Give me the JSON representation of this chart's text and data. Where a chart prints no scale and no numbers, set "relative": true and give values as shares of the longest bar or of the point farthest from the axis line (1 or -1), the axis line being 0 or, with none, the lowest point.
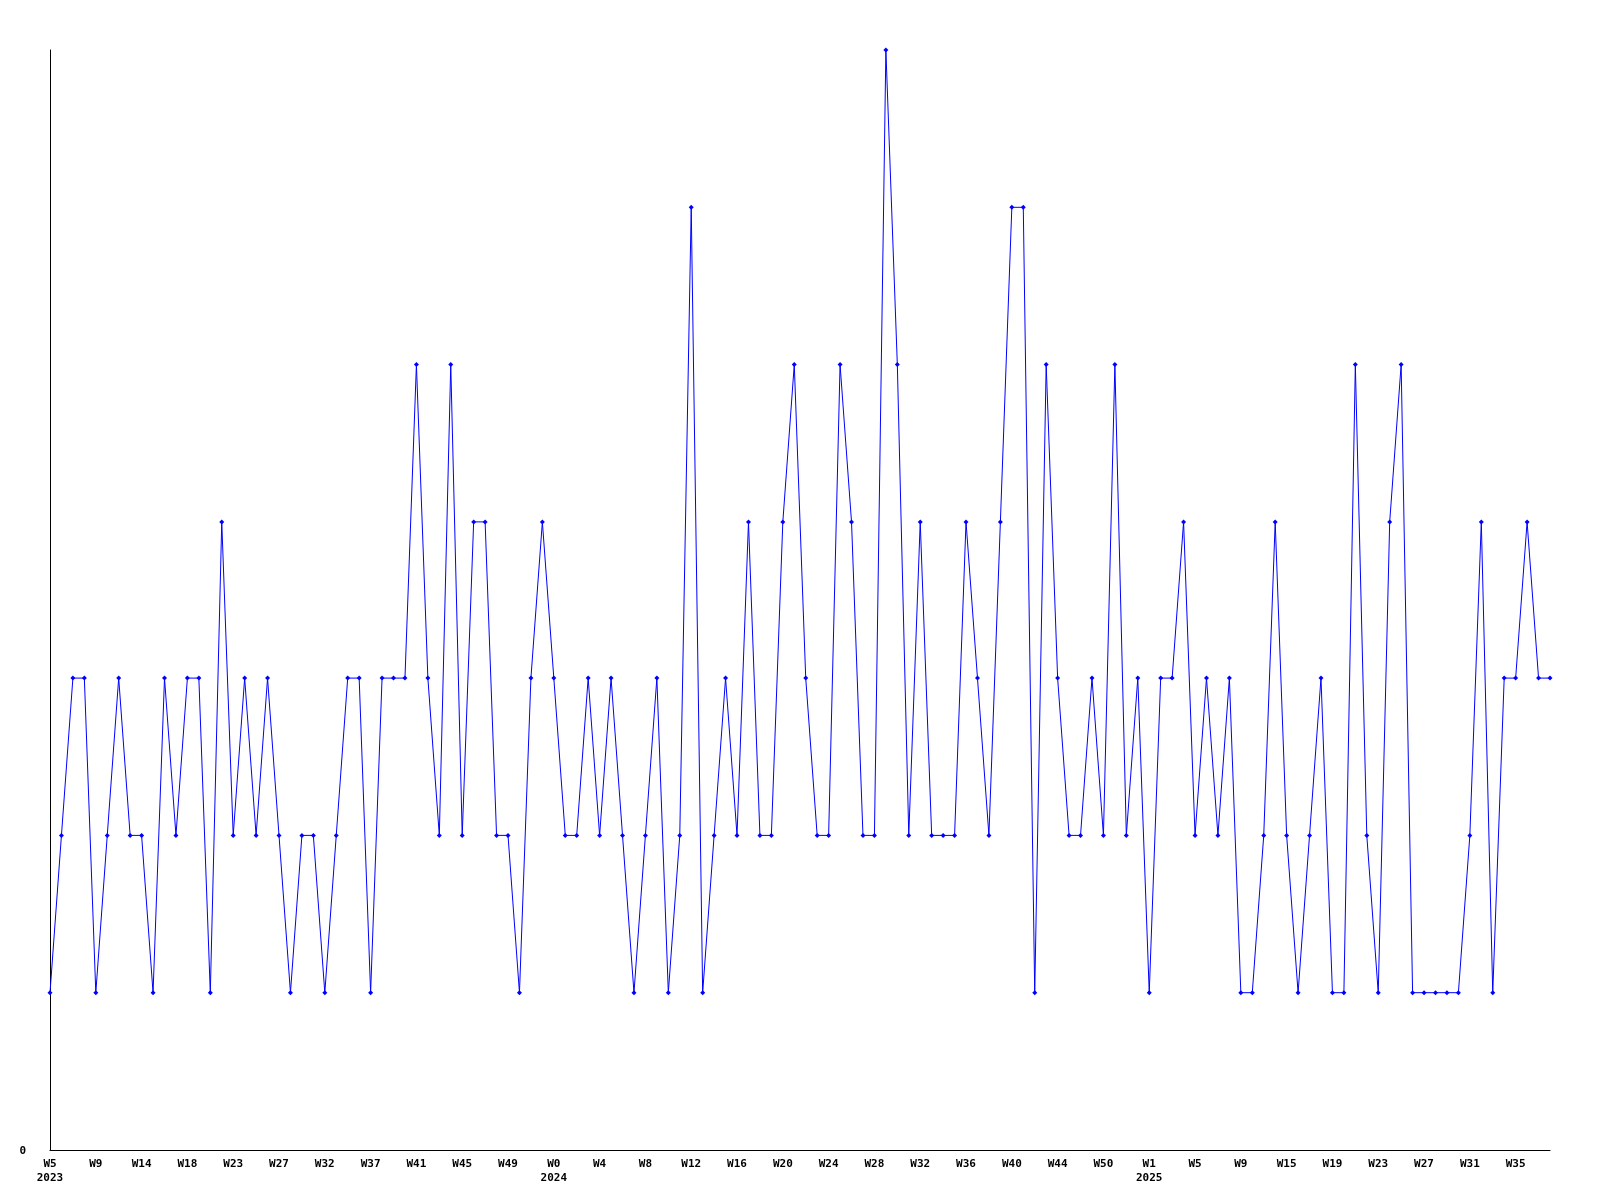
{
  "chart_data": {
    "type": "line",
    "relative": true,
    "color": "#0000ff",
    "marker": "diamond",
    "line_style": "solid",
    "grid": false,
    "annotations": [
      "0"
    ],
    "categories": [
      "W5\n2023",
      null,
      null,
      null,
      "W9",
      null,
      null,
      null,
      "W14",
      null,
      null,
      null,
      "W18",
      null,
      null,
      null,
      "W23",
      null,
      null,
      null,
      "W27",
      null,
      null,
      null,
      "W32",
      null,
      null,
      null,
      "W37",
      null,
      null,
      null,
      "W41",
      null,
      null,
      null,
      "W45",
      null,
      null,
      null,
      "W49",
      null,
      null,
      null,
      "W0\n2024",
      null,
      null,
      null,
      "W4",
      null,
      null,
      null,
      "W8",
      null,
      null,
      null,
      "W12",
      null,
      null,
      null,
      "W16",
      null,
      null,
      null,
      "W20",
      null,
      null,
      null,
      "W24",
      null,
      null,
      null,
      "W28",
      null,
      null,
      null,
      "W32",
      null,
      null,
      null,
      "W36",
      null,
      null,
      null,
      "W40",
      null,
      null,
      null,
      "W44",
      null,
      null,
      null,
      "W50",
      null,
      null,
      null,
      "W1\n2025",
      null,
      null,
      null,
      "W5",
      null,
      null,
      null,
      "W9",
      null,
      null,
      null,
      "W15",
      null,
      null,
      null,
      "W19",
      null,
      null,
      null,
      "W23",
      null,
      null,
      null,
      "W27",
      null,
      null,
      null,
      "W31",
      null,
      null,
      null,
      "W35",
      null,
      null,
      null
    ],
    "values": [
      0.143,
      0.286,
      0.429,
      0.429,
      0.143,
      0.286,
      0.429,
      0.286,
      0.286,
      0.143,
      0.429,
      0.286,
      0.429,
      0.429,
      0.143,
      0.571,
      0.286,
      0.429,
      0.286,
      0.429,
      0.286,
      0.143,
      0.286,
      0.286,
      0.143,
      0.286,
      0.429,
      0.429,
      0.143,
      0.429,
      0.429,
      0.429,
      0.714,
      0.429,
      0.286,
      0.714,
      0.286,
      0.571,
      0.571,
      0.286,
      0.286,
      0.143,
      0.429,
      0.571,
      0.429,
      0.286,
      0.286,
      0.429,
      0.286,
      0.429,
      0.286,
      0.143,
      0.286,
      0.429,
      0.143,
      0.286,
      0.857,
      0.143,
      0.286,
      0.429,
      0.286,
      0.571,
      0.286,
      0.286,
      0.571,
      0.714,
      0.429,
      0.286,
      0.286,
      0.714,
      0.571,
      0.286,
      0.286,
      1,
      0.714,
      0.286,
      0.571,
      0.286,
      0.286,
      0.286,
      0.571,
      0.429,
      0.286,
      0.571,
      0.857,
      0.857,
      0.143,
      0.714,
      0.429,
      0.286,
      0.286,
      0.429,
      0.286,
      0.714,
      0.286,
      0.429,
      0.143,
      0.429,
      0.429,
      0.571,
      0.286,
      0.429,
      0.286,
      0.429,
      0.143,
      0.143,
      0.286,
      0.571,
      0.286,
      0.143,
      0.286,
      0.429,
      0.143,
      0.143,
      0.714,
      0.286,
      0.143,
      0.571,
      0.714,
      0.143,
      0.143,
      0.143,
      0.143,
      0.143,
      0.286,
      0.571,
      0.143,
      0.429,
      0.429,
      0.571,
      0.429,
      0.429
    ]
  }
}
